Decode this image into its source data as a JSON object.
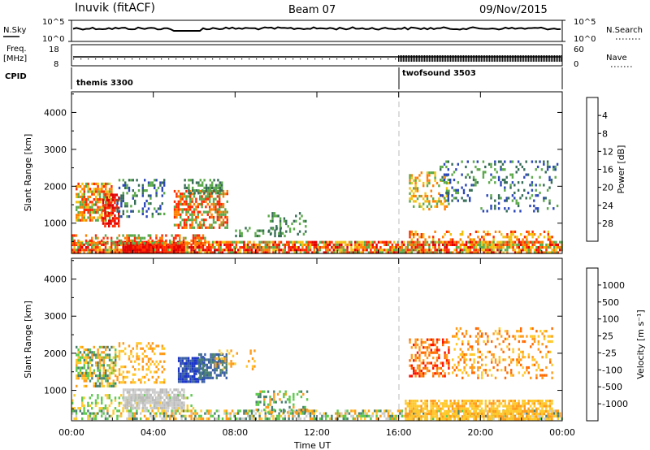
{
  "header": {
    "station": "Inuvik (fitACF)",
    "beam": "Beam 07",
    "date": "09/Nov/2015"
  },
  "nsky_panel": {
    "left_label": "N.Sky",
    "right_label": "N.Search",
    "left_ticks": [
      "10^5",
      "10^0"
    ],
    "right_ticks": [
      "10^5",
      "10^0"
    ]
  },
  "freq_panel": {
    "left_label": "Freq.",
    "left_unit": "[MHz]",
    "right_label": "Nave",
    "left_ticks": [
      "18",
      "8"
    ],
    "right_ticks": [
      "60",
      "0"
    ]
  },
  "cpid": {
    "label": "CPID",
    "segments": [
      {
        "name": "themis 3300",
        "start_hour": 0
      },
      {
        "name": "twofsound 3503",
        "start_hour": 16
      }
    ]
  },
  "chart_data": [
    {
      "type": "heatmap",
      "title": "",
      "ylabel": "Slant Range [km]",
      "xlabel": "",
      "ylim": [
        180,
        4560
      ],
      "yticks": [
        1000,
        2000,
        3000,
        4000
      ],
      "xlim": [
        0,
        24
      ],
      "colorbar_label": "Power [dB]",
      "colorbar_ticks": [
        "4",
        "8",
        "12",
        "16",
        "20",
        "24",
        "28"
      ],
      "colorbar_colors": [
        "#0a17e8",
        "#2a46b8",
        "#356c55",
        "#5ba94a",
        "#f3c20f",
        "#ff7f00",
        "#ff2a00",
        "#e30000"
      ]
    },
    {
      "type": "heatmap",
      "title": "",
      "ylabel": "Slant Range [km]",
      "xlabel": "Time UT",
      "ylim": [
        180,
        4560
      ],
      "yticks": [
        1000,
        2000,
        3000,
        4000
      ],
      "xlim": [
        0,
        24
      ],
      "xtick_labels": [
        "00:00",
        "04:00",
        "08:00",
        "12:00",
        "16:00",
        "20:00",
        "00:00"
      ],
      "colorbar_label": "Velocity [m s⁻¹]",
      "colorbar_ticks": [
        "1000",
        "500",
        "100",
        "25",
        "-25",
        "-100",
        "-500",
        "-1000"
      ],
      "colorbar_colors": [
        "#1c35c9",
        "#3a5fa4",
        "#4a8070",
        "#5cc94c",
        "#cccccc",
        "#ffc92c",
        "#ff9b1a",
        "#ff6a00",
        "#ff1000"
      ]
    }
  ],
  "data_regions": {
    "power": [
      {
        "t0": 0.0,
        "t1": 24.0,
        "r0": 200,
        "r1": 520,
        "colors": [
          "#ff2a00",
          "#ff7f00",
          "#e30000",
          "#f3c20f",
          "#5ba94a"
        ],
        "d": 0.8
      },
      {
        "t0": 2.5,
        "t1": 5.5,
        "r0": 200,
        "r1": 450,
        "colors": [
          "#ff2a00",
          "#e30000"
        ],
        "d": 0.95
      },
      {
        "t0": 0.0,
        "t1": 6.5,
        "r0": 450,
        "r1": 700,
        "colors": [
          "#ff7f00",
          "#5ba94a",
          "#ff2a00"
        ],
        "d": 0.5
      },
      {
        "t0": 0.2,
        "t1": 2.0,
        "r0": 1100,
        "r1": 2100,
        "colors": [
          "#ff7f00",
          "#ff2a00",
          "#f3c20f",
          "#5ba94a"
        ],
        "d": 0.7
      },
      {
        "t0": 1.5,
        "t1": 2.3,
        "r0": 900,
        "r1": 1800,
        "colors": [
          "#ff2a00",
          "#e30000"
        ],
        "d": 0.6
      },
      {
        "t0": 2.2,
        "t1": 4.5,
        "r0": 1200,
        "r1": 2200,
        "colors": [
          "#5ba94a",
          "#356c55",
          "#2a46b8"
        ],
        "d": 0.25
      },
      {
        "t0": 5.0,
        "t1": 7.6,
        "r0": 900,
        "r1": 1900,
        "colors": [
          "#ff2a00",
          "#ff7f00",
          "#5ba94a"
        ],
        "d": 0.6
      },
      {
        "t0": 5.5,
        "t1": 7.5,
        "r0": 1800,
        "r1": 2200,
        "colors": [
          "#356c55",
          "#5ba94a"
        ],
        "d": 0.5
      },
      {
        "t0": 8.0,
        "t1": 10.5,
        "r0": 650,
        "r1": 900,
        "colors": [
          "#5ba94a",
          "#356c55"
        ],
        "d": 0.3
      },
      {
        "t0": 9.5,
        "t1": 11.5,
        "r0": 700,
        "r1": 1300,
        "colors": [
          "#5ba94a",
          "#356c55"
        ],
        "d": 0.25
      },
      {
        "t0": 16.5,
        "t1": 18.5,
        "r0": 1400,
        "r1": 2400,
        "colors": [
          "#f3c20f",
          "#ff7f00",
          "#5ba94a"
        ],
        "d": 0.35
      },
      {
        "t0": 18.0,
        "t1": 20.0,
        "r0": 1600,
        "r1": 2700,
        "colors": [
          "#5ba94a",
          "#356c55",
          "#2a46b8"
        ],
        "d": 0.2
      },
      {
        "t0": 20.0,
        "t1": 23.8,
        "r0": 1300,
        "r1": 2700,
        "colors": [
          "#356c55",
          "#2a46b8",
          "#5ba94a"
        ],
        "d": 0.18
      },
      {
        "t0": 16.5,
        "t1": 23.5,
        "r0": 500,
        "r1": 800,
        "colors": [
          "#ff7f00",
          "#ff2a00",
          "#f3c20f"
        ],
        "d": 0.35
      }
    ],
    "velocity": [
      {
        "t0": 0.0,
        "t1": 24.0,
        "r0": 200,
        "r1": 480,
        "colors": [
          "#5cc94c",
          "#4a8070",
          "#ffc92c",
          "#ff9b1a",
          "#cccccc"
        ],
        "d": 0.55
      },
      {
        "t0": 0.0,
        "t1": 6.0,
        "r0": 480,
        "r1": 900,
        "colors": [
          "#5cc94c",
          "#ffc92c"
        ],
        "d": 0.35
      },
      {
        "t0": 2.5,
        "t1": 5.5,
        "r0": 500,
        "r1": 1050,
        "colors": [
          "#cccccc",
          "#bbbbbb"
        ],
        "d": 0.8
      },
      {
        "t0": 0.2,
        "t1": 2.2,
        "r0": 1100,
        "r1": 2200,
        "colors": [
          "#ff9b1a",
          "#ffc92c",
          "#4a8070",
          "#5cc94c"
        ],
        "d": 0.6
      },
      {
        "t0": 2.2,
        "t1": 4.5,
        "r0": 1200,
        "r1": 2300,
        "colors": [
          "#ff9b1a",
          "#ffc92c"
        ],
        "d": 0.3
      },
      {
        "t0": 5.2,
        "t1": 6.5,
        "r0": 1200,
        "r1": 1900,
        "colors": [
          "#1c35c9",
          "#3a5fa4"
        ],
        "d": 0.85
      },
      {
        "t0": 6.2,
        "t1": 7.6,
        "r0": 1300,
        "r1": 2000,
        "colors": [
          "#4a8070",
          "#3a5fa4"
        ],
        "d": 0.7
      },
      {
        "t0": 7.0,
        "t1": 9.0,
        "r0": 1600,
        "r1": 2100,
        "colors": [
          "#ffc92c",
          "#ff9b1a"
        ],
        "d": 0.25
      },
      {
        "t0": 9.0,
        "t1": 11.5,
        "r0": 400,
        "r1": 1000,
        "colors": [
          "#5cc94c",
          "#4a8070",
          "#ff9b1a"
        ],
        "d": 0.35
      },
      {
        "t0": 16.3,
        "t1": 23.5,
        "r0": 250,
        "r1": 750,
        "colors": [
          "#ffc92c",
          "#ff9b1a",
          "#ffc92c"
        ],
        "d": 0.75
      },
      {
        "t0": 16.5,
        "t1": 18.5,
        "r0": 1400,
        "r1": 2400,
        "colors": [
          "#ff6a00",
          "#ff1000",
          "#ff9b1a"
        ],
        "d": 0.45
      },
      {
        "t0": 18.5,
        "t1": 23.5,
        "r0": 1300,
        "r1": 2700,
        "colors": [
          "#ff9b1a",
          "#ff6a00",
          "#ffc92c"
        ],
        "d": 0.25
      }
    ]
  }
}
